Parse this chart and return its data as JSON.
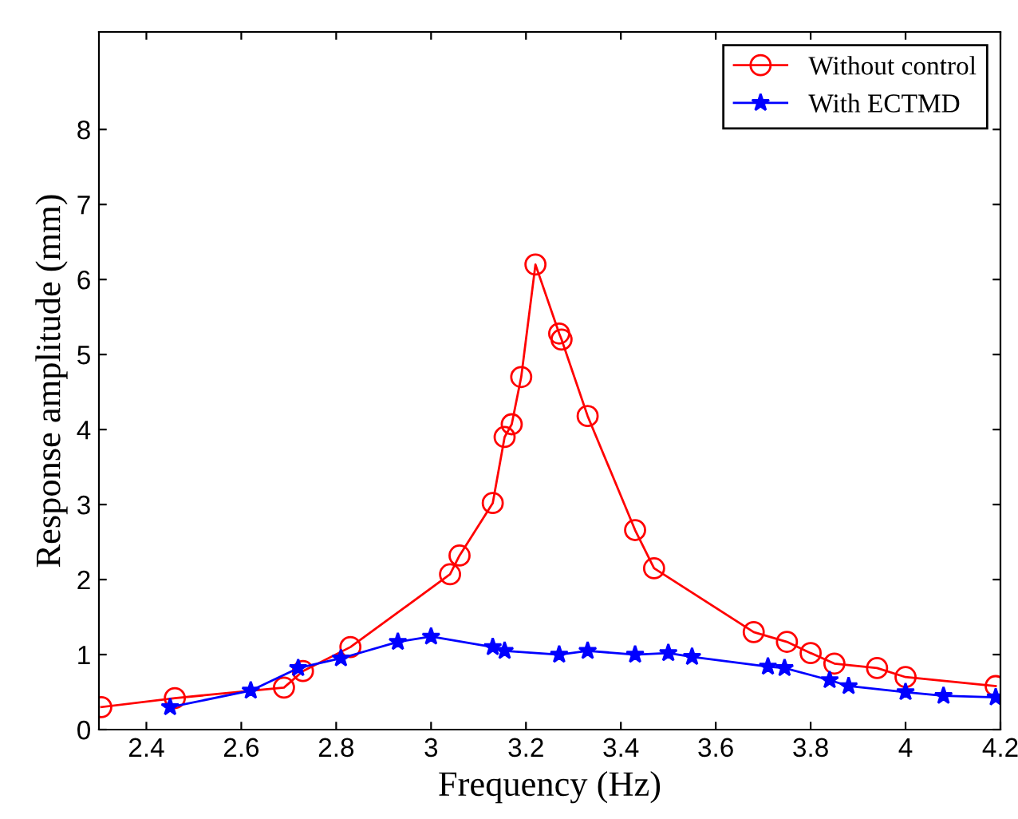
{
  "chart_data": {
    "type": "line",
    "xlabel": "Frequency (Hz)",
    "ylabel": "Response amplitude (mm)",
    "xlim": [
      2.3,
      4.2
    ],
    "xticks": [
      2.4,
      2.6,
      2.8,
      3,
      3.2,
      3.4,
      3.6,
      3.8,
      4,
      4.2
    ],
    "ylim": [
      0,
      9.3
    ],
    "yticks": [
      0,
      1,
      2,
      3,
      4,
      5,
      6,
      7,
      8
    ],
    "grid": false,
    "legend": "top right",
    "line_style": "solid",
    "series": [
      {
        "name": "Without control",
        "color": "#ff0000",
        "marker": "circle",
        "x": [
          2.305,
          2.46,
          2.69,
          2.73,
          2.83,
          3.04,
          3.06,
          3.13,
          3.155,
          3.17,
          3.19,
          3.22,
          3.27,
          3.275,
          3.33,
          3.43,
          3.47,
          3.68,
          3.75,
          3.8,
          3.85,
          3.94,
          4.0,
          4.19
        ],
        "values": [
          0.3,
          0.42,
          0.56,
          0.78,
          1.1,
          2.07,
          2.32,
          3.02,
          3.9,
          4.07,
          4.7,
          6.2,
          5.28,
          5.2,
          4.18,
          2.66,
          2.15,
          1.3,
          1.17,
          1.02,
          0.88,
          0.82,
          0.7,
          0.58
        ]
      },
      {
        "name": "With ECTMD",
        "color": "#0000ff",
        "marker": "star",
        "x": [
          2.45,
          2.62,
          2.72,
          2.81,
          2.93,
          3.0,
          3.13,
          3.155,
          3.27,
          3.33,
          3.43,
          3.5,
          3.55,
          3.71,
          3.745,
          3.84,
          3.88,
          4.0,
          4.08,
          4.19
        ],
        "values": [
          0.3,
          0.52,
          0.82,
          0.95,
          1.17,
          1.24,
          1.1,
          1.05,
          1.0,
          1.05,
          1.0,
          1.02,
          0.97,
          0.84,
          0.82,
          0.66,
          0.58,
          0.5,
          0.45,
          0.43
        ]
      }
    ]
  }
}
